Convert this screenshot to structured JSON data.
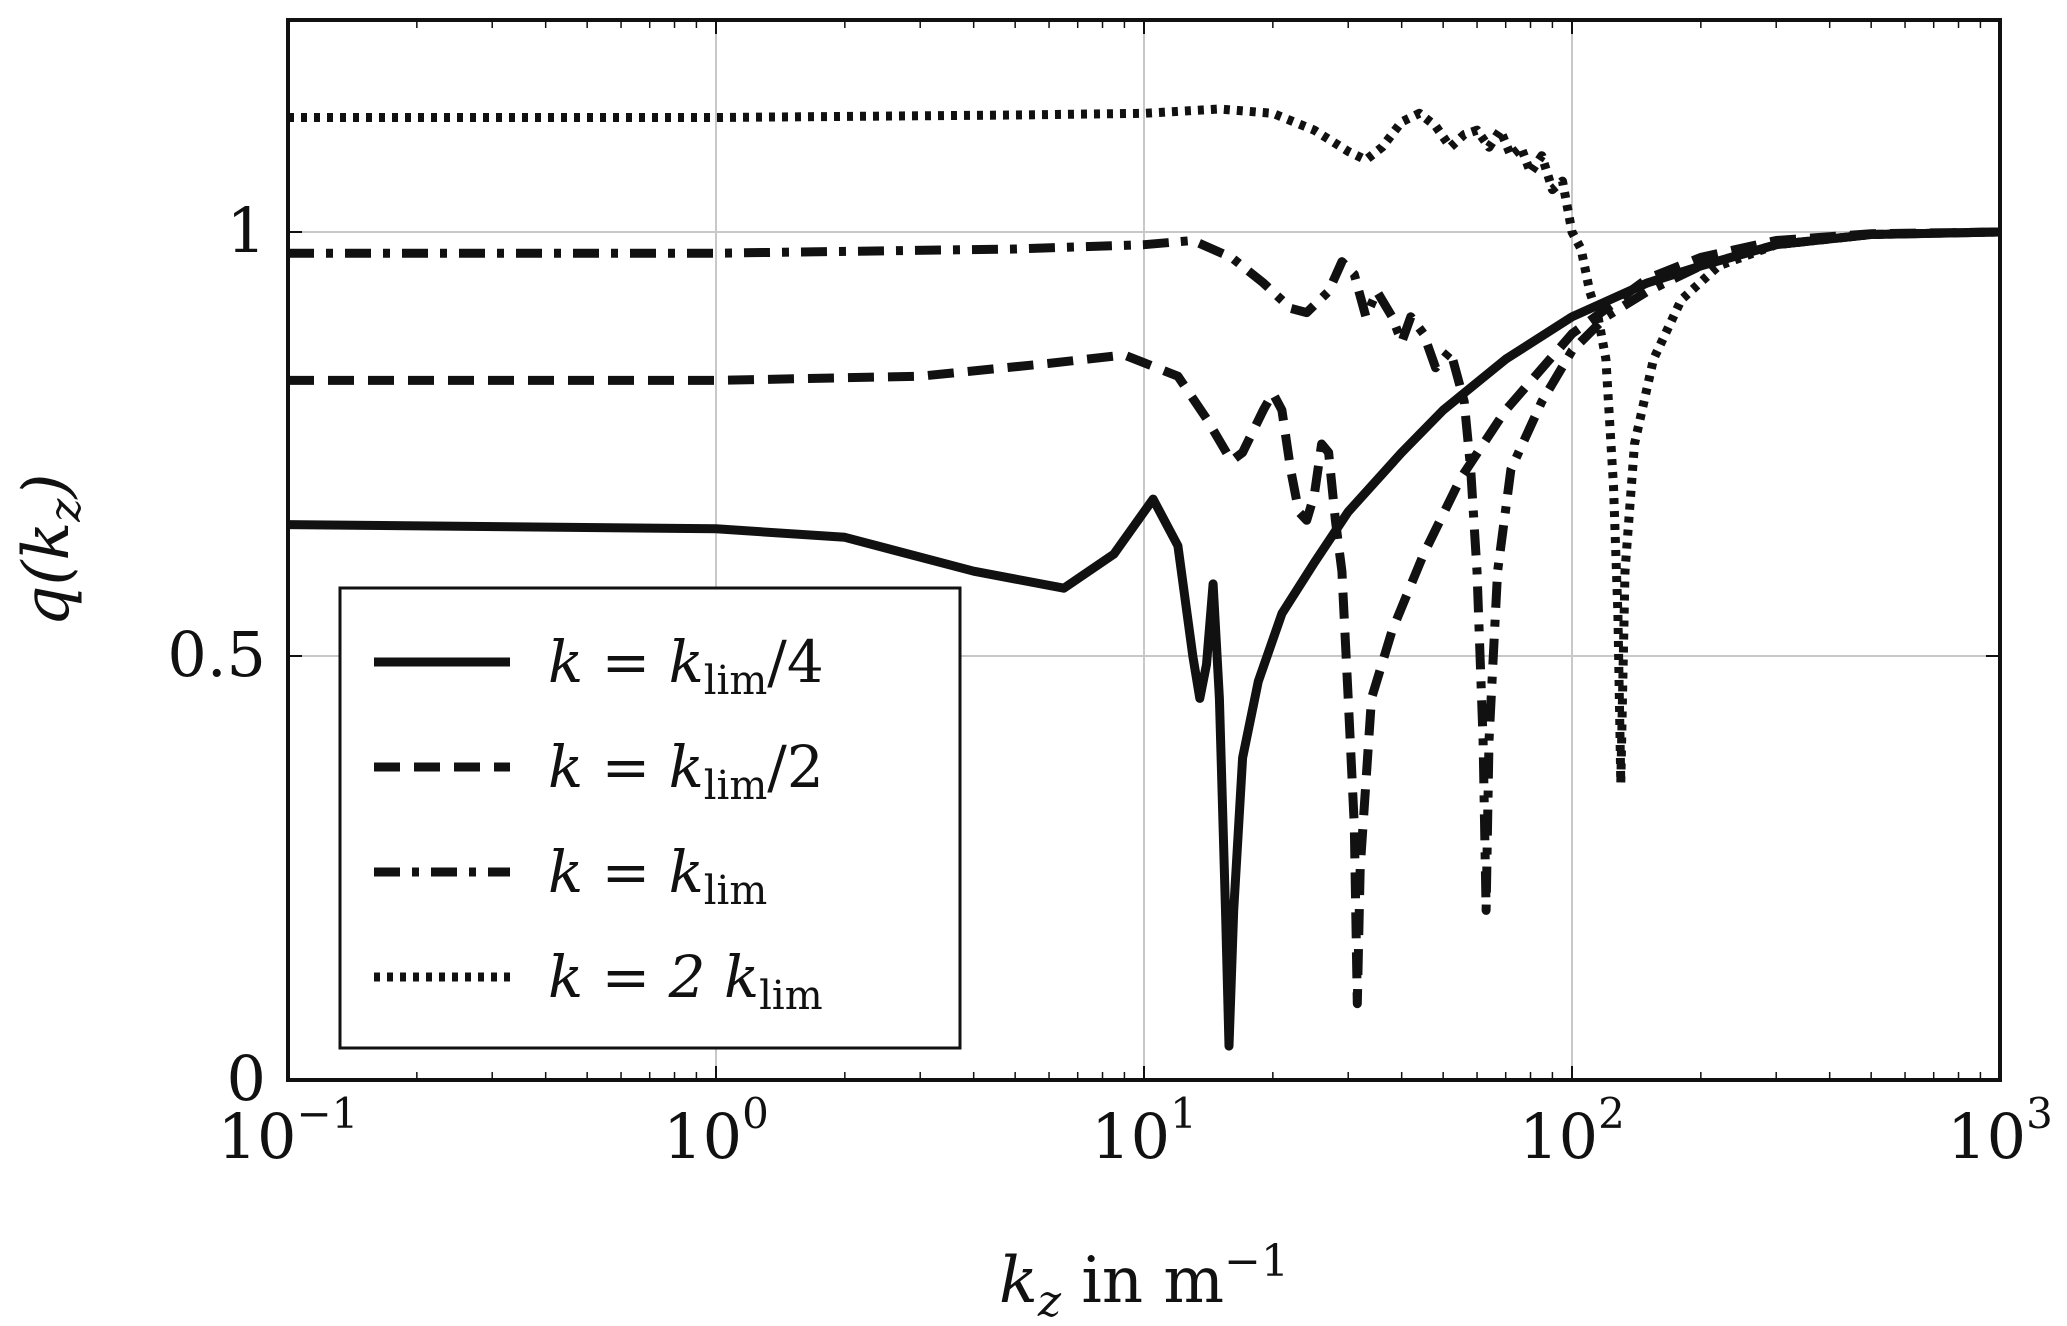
{
  "chart_data": {
    "type": "line",
    "title": "",
    "xlabel": {
      "main": "k",
      "sub": "z",
      "text": " in m",
      "sup": "−1"
    },
    "ylabel": {
      "main": "q(k",
      "sub": "z",
      "close": ")"
    },
    "xscale": "log",
    "xlim": [
      0.1,
      1000
    ],
    "ylim": [
      0,
      1.25
    ],
    "grid": true,
    "x_ticks": [
      {
        "value": 0.1,
        "base": "10",
        "exp": "−1"
      },
      {
        "value": 1,
        "base": "10",
        "exp": "0"
      },
      {
        "value": 10,
        "base": "10",
        "exp": "1"
      },
      {
        "value": 100,
        "base": "10",
        "exp": "2"
      },
      {
        "value": 1000,
        "base": "10",
        "exp": "3"
      }
    ],
    "y_ticks": [
      {
        "value": 0,
        "label": "0"
      },
      {
        "value": 0.5,
        "label": "0.5"
      },
      {
        "value": 1,
        "label": "1"
      }
    ],
    "legend_position": "bottom-left",
    "series": [
      {
        "name": "k = k_lim/4",
        "legend": {
          "pre": "k = k",
          "sub": "lim",
          "post": "/4"
        },
        "style": "solid",
        "points": [
          [
            0.1,
            0.655
          ],
          [
            1,
            0.65
          ],
          [
            2,
            0.64
          ],
          [
            4,
            0.6
          ],
          [
            6.5,
            0.58
          ],
          [
            8.5,
            0.62
          ],
          [
            10.5,
            0.685
          ],
          [
            12,
            0.63
          ],
          [
            13,
            0.5
          ],
          [
            13.5,
            0.45
          ],
          [
            14,
            0.49
          ],
          [
            14.5,
            0.585
          ],
          [
            15,
            0.45
          ],
          [
            15.5,
            0.2
          ],
          [
            15.8,
            0.04
          ],
          [
            16.2,
            0.2
          ],
          [
            17,
            0.38
          ],
          [
            18.5,
            0.47
          ],
          [
            21,
            0.55
          ],
          [
            25,
            0.61
          ],
          [
            30,
            0.67
          ],
          [
            40,
            0.74
          ],
          [
            50,
            0.79
          ],
          [
            70,
            0.85
          ],
          [
            100,
            0.9
          ],
          [
            150,
            0.94
          ],
          [
            200,
            0.96
          ],
          [
            300,
            0.985
          ],
          [
            500,
            0.997
          ],
          [
            1000,
            1.0
          ]
        ]
      },
      {
        "name": "k = k_lim/2",
        "legend": {
          "pre": "k = k",
          "sub": "lim",
          "post": "/2"
        },
        "style": "dashed",
        "points": [
          [
            0.1,
            0.825
          ],
          [
            1,
            0.825
          ],
          [
            3,
            0.83
          ],
          [
            6,
            0.845
          ],
          [
            9,
            0.855
          ],
          [
            12,
            0.83
          ],
          [
            14,
            0.78
          ],
          [
            16,
            0.73
          ],
          [
            17,
            0.74
          ],
          [
            19,
            0.79
          ],
          [
            20,
            0.81
          ],
          [
            21,
            0.79
          ],
          [
            22,
            0.72
          ],
          [
            23,
            0.67
          ],
          [
            24,
            0.66
          ],
          [
            25,
            0.69
          ],
          [
            26,
            0.75
          ],
          [
            27,
            0.74
          ],
          [
            28,
            0.66
          ],
          [
            29,
            0.6
          ],
          [
            30,
            0.45
          ],
          [
            31,
            0.3
          ],
          [
            31.5,
            0.09
          ],
          [
            32,
            0.25
          ],
          [
            34,
            0.45
          ],
          [
            38,
            0.53
          ],
          [
            45,
            0.62
          ],
          [
            55,
            0.71
          ],
          [
            70,
            0.79
          ],
          [
            100,
            0.88
          ],
          [
            150,
            0.945
          ],
          [
            200,
            0.97
          ],
          [
            300,
            0.99
          ],
          [
            500,
            0.998
          ],
          [
            1000,
            1.0
          ]
        ]
      },
      {
        "name": "k = k_lim",
        "legend": {
          "pre": "k = k",
          "sub": "lim",
          "post": ""
        },
        "style": "dashdot",
        "points": [
          [
            0.1,
            0.975
          ],
          [
            1,
            0.975
          ],
          [
            5,
            0.98
          ],
          [
            10,
            0.985
          ],
          [
            13,
            0.99
          ],
          [
            16,
            0.97
          ],
          [
            19,
            0.94
          ],
          [
            22,
            0.91
          ],
          [
            24,
            0.905
          ],
          [
            27,
            0.93
          ],
          [
            29,
            0.965
          ],
          [
            31,
            0.95
          ],
          [
            33,
            0.9
          ],
          [
            35,
            0.93
          ],
          [
            38,
            0.9
          ],
          [
            40,
            0.87
          ],
          [
            42,
            0.9
          ],
          [
            45,
            0.88
          ],
          [
            48,
            0.84
          ],
          [
            52,
            0.86
          ],
          [
            56,
            0.8
          ],
          [
            58,
            0.72
          ],
          [
            60,
            0.6
          ],
          [
            62,
            0.4
          ],
          [
            63,
            0.2
          ],
          [
            64,
            0.4
          ],
          [
            67,
            0.6
          ],
          [
            72,
            0.72
          ],
          [
            85,
            0.8
          ],
          [
            100,
            0.86
          ],
          [
            120,
            0.9
          ],
          [
            150,
            0.93
          ],
          [
            200,
            0.96
          ],
          [
            300,
            0.985
          ],
          [
            500,
            0.997
          ],
          [
            1000,
            1.0
          ]
        ]
      },
      {
        "name": "k = 2 k_lim",
        "legend": {
          "pre": "k = 2 k",
          "sub": "lim",
          "post": ""
        },
        "style": "dotted",
        "points": [
          [
            0.1,
            1.135
          ],
          [
            1,
            1.135
          ],
          [
            5,
            1.138
          ],
          [
            10,
            1.14
          ],
          [
            15,
            1.145
          ],
          [
            20,
            1.14
          ],
          [
            25,
            1.12
          ],
          [
            30,
            1.095
          ],
          [
            33,
            1.085
          ],
          [
            36,
            1.1
          ],
          [
            40,
            1.13
          ],
          [
            44,
            1.14
          ],
          [
            48,
            1.125
          ],
          [
            52,
            1.1
          ],
          [
            56,
            1.115
          ],
          [
            60,
            1.12
          ],
          [
            64,
            1.1
          ],
          [
            68,
            1.12
          ],
          [
            72,
            1.09
          ],
          [
            76,
            1.1
          ],
          [
            80,
            1.07
          ],
          [
            85,
            1.09
          ],
          [
            90,
            1.05
          ],
          [
            95,
            1.06
          ],
          [
            100,
            1.0
          ],
          [
            105,
            0.98
          ],
          [
            110,
            0.93
          ],
          [
            115,
            0.9
          ],
          [
            120,
            0.85
          ],
          [
            125,
            0.7
          ],
          [
            128,
            0.55
          ],
          [
            130,
            0.35
          ],
          [
            133,
            0.6
          ],
          [
            140,
            0.75
          ],
          [
            155,
            0.85
          ],
          [
            180,
            0.92
          ],
          [
            220,
            0.96
          ],
          [
            300,
            0.985
          ],
          [
            500,
            0.997
          ],
          [
            1000,
            1.0
          ]
        ]
      }
    ]
  }
}
